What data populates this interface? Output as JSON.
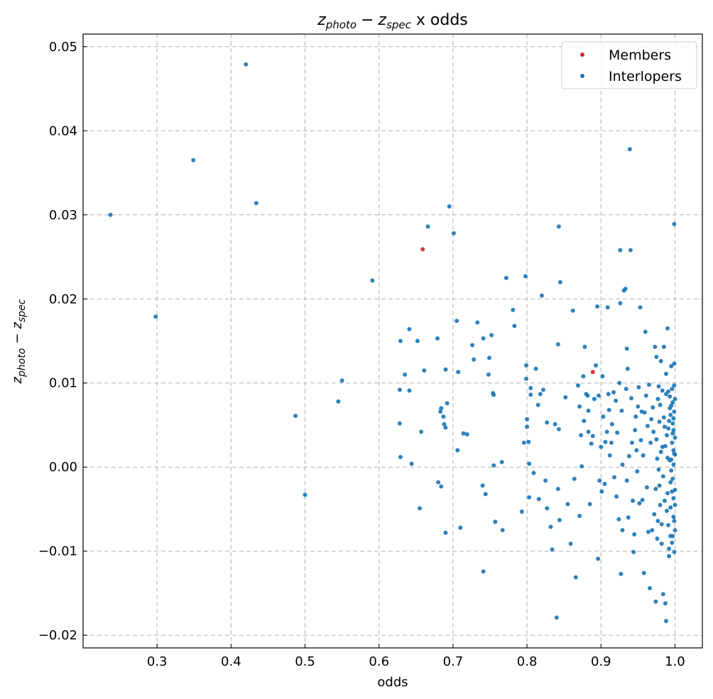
{
  "chart_data": {
    "type": "scatter",
    "title": {
      "a": "z",
      "a_sub": "photo",
      "minus": "−",
      "b": "z",
      "b_sub": "spec",
      "suffix": "x odds"
    },
    "xlabel": "odds",
    "ylabel": {
      "a": "z",
      "a_sub": "photo",
      "minus": "−",
      "b": "z",
      "b_sub": "spec"
    },
    "xlim": [
      0.2,
      1.037
    ],
    "ylim": [
      -0.0215,
      0.0515
    ],
    "xticks": [
      0.3,
      0.4,
      0.5,
      0.6,
      0.7,
      0.8,
      0.9,
      1.0
    ],
    "xtick_labels": [
      "0.3",
      "0.4",
      "0.5",
      "0.6",
      "0.7",
      "0.8",
      "0.9",
      "1.0"
    ],
    "yticks": [
      -0.02,
      -0.01,
      0.0,
      0.01,
      0.02,
      0.03,
      0.04,
      0.05
    ],
    "ytick_labels": [
      "−0.02",
      "−0.01",
      "0.00",
      "0.01",
      "0.02",
      "0.03",
      "0.04",
      "0.05"
    ],
    "grid": true,
    "legend": {
      "placement": "top-right"
    },
    "series": [
      {
        "name": "Members",
        "color": "#d62728",
        "points": [
          [
            0.659,
            0.0259
          ],
          [
            0.889,
            0.0113
          ]
        ]
      },
      {
        "name": "Interlopers",
        "color": "#1f77b4",
        "points": [
          [
            0.237,
            0.03
          ],
          [
            0.298,
            0.0179
          ],
          [
            0.349,
            0.0365
          ],
          [
            0.42,
            0.0479
          ],
          [
            0.434,
            0.0314
          ],
          [
            0.487,
            0.0061
          ],
          [
            0.5,
            -0.0033
          ],
          [
            0.545,
            0.0078
          ],
          [
            0.55,
            0.0103
          ],
          [
            0.591,
            0.0222
          ],
          [
            0.629,
            0.015
          ],
          [
            0.628,
            0.0092
          ],
          [
            0.628,
            0.0052
          ],
          [
            0.629,
            0.0012
          ],
          [
            0.635,
            0.011
          ],
          [
            0.641,
            0.0164
          ],
          [
            0.641,
            0.0091
          ],
          [
            0.644,
            0.0004
          ],
          [
            0.652,
            0.015
          ],
          [
            0.655,
            -0.0049
          ],
          [
            0.657,
            0.0042
          ],
          [
            0.661,
            0.0115
          ],
          [
            0.666,
            0.0286
          ],
          [
            0.679,
            0.0153
          ],
          [
            0.68,
            -0.0018
          ],
          [
            0.683,
            0.0066
          ],
          [
            0.684,
            0.007
          ],
          [
            0.684,
            -0.0023
          ],
          [
            0.687,
            0.006
          ],
          [
            0.688,
            0.0051
          ],
          [
            0.69,
            0.0047
          ],
          [
            0.69,
            0.0116
          ],
          [
            0.69,
            -0.0078
          ],
          [
            0.692,
            0.0076
          ],
          [
            0.695,
            0.031
          ],
          [
            0.701,
            0.0278
          ],
          [
            0.705,
            0.0174
          ],
          [
            0.707,
            0.0113
          ],
          [
            0.706,
            0.002
          ],
          [
            0.71,
            -0.0072
          ],
          [
            0.714,
            0.004
          ],
          [
            0.719,
            0.0039
          ],
          [
            0.726,
            0.0145
          ],
          [
            0.728,
            0.0128
          ],
          [
            0.733,
            0.0172
          ],
          [
            0.74,
            -0.0022
          ],
          [
            0.741,
            0.0153
          ],
          [
            0.741,
            -0.0124
          ],
          [
            0.744,
            -0.0032
          ],
          [
            0.748,
            0.011
          ],
          [
            0.749,
            0.013
          ],
          [
            0.752,
            0.0157
          ],
          [
            0.754,
            0.0088
          ],
          [
            0.755,
            0.0086
          ],
          [
            0.755,
            0.0002
          ],
          [
            0.757,
            -0.0065
          ],
          [
            0.766,
            0.0006
          ],
          [
            0.767,
            -0.0075
          ],
          [
            0.772,
            0.0225
          ],
          [
            0.781,
            0.0187
          ],
          [
            0.783,
            0.0168
          ],
          [
            0.793,
            -0.0053
          ],
          [
            0.796,
            0.0029
          ],
          [
            0.798,
            0.0227
          ],
          [
            0.799,
            0.0121
          ],
          [
            0.799,
            0.0105
          ],
          [
            0.8,
            0.0057
          ],
          [
            0.8,
            0.0048
          ],
          [
            0.802,
            0.003
          ],
          [
            0.803,
            0.0004
          ],
          [
            0.803,
            -0.0036
          ],
          [
            0.805,
            0.0094
          ],
          [
            0.805,
            0.0086
          ],
          [
            0.809,
            -0.0007
          ],
          [
            0.812,
            0.0117
          ],
          [
            0.815,
            0.0074
          ],
          [
            0.818,
            0.0087
          ],
          [
            0.82,
            0.0204
          ],
          [
            0.822,
            0.0092
          ],
          [
            0.816,
            -0.0038
          ],
          [
            0.825,
            -0.0016
          ],
          [
            0.827,
            0.0053
          ],
          [
            0.827,
            -0.0049
          ],
          [
            0.832,
            -0.0071
          ],
          [
            0.834,
            -0.0098
          ],
          [
            0.838,
            0.0051
          ],
          [
            0.84,
            -0.0179
          ],
          [
            0.842,
            0.0146
          ],
          [
            0.843,
            0.0286
          ],
          [
            0.845,
            0.022
          ],
          [
            0.843,
            0.0045
          ],
          [
            0.842,
            -0.0026
          ],
          [
            0.844,
            -0.0063
          ],
          [
            0.852,
            0.0083
          ],
          [
            0.855,
            -0.0044
          ],
          [
            0.859,
            -0.0091
          ],
          [
            0.862,
            0.0186
          ],
          [
            0.864,
            -0.0014
          ],
          [
            0.866,
            -0.0131
          ],
          [
            0.869,
            0.0097
          ],
          [
            0.871,
            0.0072
          ],
          [
            0.871,
            -0.0058
          ],
          [
            0.873,
            0.0038
          ],
          [
            0.874,
            0.0001
          ],
          [
            0.876,
            0.0108
          ],
          [
            0.877,
            0.0055
          ],
          [
            0.878,
            0.0143
          ],
          [
            0.88,
            0.0087
          ],
          [
            0.882,
            0.0085
          ],
          [
            0.883,
            0.0042
          ],
          [
            0.883,
            0.0067
          ],
          [
            0.885,
            -0.0044
          ],
          [
            0.887,
            0.0028
          ],
          [
            0.889,
            0.0037
          ],
          [
            0.891,
            0.0081
          ],
          [
            0.893,
            0.0121
          ],
          [
            0.895,
            0.0191
          ],
          [
            0.896,
            -0.0109
          ],
          [
            0.897,
            0.0085
          ],
          [
            0.898,
            -0.0016
          ],
          [
            0.9,
            0.0024
          ],
          [
            0.901,
            -0.0029
          ],
          [
            0.902,
            0.0108
          ],
          [
            0.903,
            0.006
          ],
          [
            0.905,
            -0.002
          ],
          [
            0.906,
            0.003
          ],
          [
            0.908,
            0.0042
          ],
          [
            0.909,
            0.019
          ],
          [
            0.91,
            0.0087
          ],
          [
            0.911,
            0.0068
          ],
          [
            0.912,
            0.0014
          ],
          [
            0.914,
            0.0029
          ],
          [
            0.915,
            0.0051
          ],
          [
            0.917,
            0.0089
          ],
          [
            0.918,
            -0.0012
          ],
          [
            0.92,
            0.0079
          ],
          [
            0.921,
            -0.0035
          ],
          [
            0.922,
            0.0041
          ],
          [
            0.924,
            -0.0062
          ],
          [
            0.925,
            0.01
          ],
          [
            0.926,
            0.0258
          ],
          [
            0.926,
            0.0195
          ],
          [
            0.927,
            -0.0127
          ],
          [
            0.928,
            0.0067
          ],
          [
            0.929,
            0.0003
          ],
          [
            0.929,
            -0.0075
          ],
          [
            0.931,
            0.021
          ],
          [
            0.933,
            0.0212
          ],
          [
            0.934,
            0.0093
          ],
          [
            0.935,
            0.0141
          ],
          [
            0.935,
            -0.0016
          ],
          [
            0.936,
            0.0117
          ],
          [
            0.937,
            -0.006
          ],
          [
            0.938,
            0.0013
          ],
          [
            0.939,
            0.0378
          ],
          [
            0.94,
            0.0258
          ],
          [
            0.941,
            0.0082
          ],
          [
            0.942,
            0.0029
          ],
          [
            0.943,
            -0.004
          ],
          [
            0.944,
            -0.0101
          ],
          [
            0.945,
            -0.008
          ],
          [
            0.946,
            0.0044
          ],
          [
            0.947,
            0.006
          ],
          [
            0.948,
            0.002
          ],
          [
            0.949,
            -0.0005
          ],
          [
            0.95,
            0.0072
          ],
          [
            0.951,
            0.0095
          ],
          [
            0.952,
            -0.0043
          ],
          [
            0.953,
            0.019
          ],
          [
            0.954,
            0.0032
          ],
          [
            0.955,
            0.0066
          ],
          [
            0.956,
            -0.0039
          ],
          [
            0.957,
            0.0014
          ],
          [
            0.958,
            -0.0126
          ],
          [
            0.959,
            0.0065
          ],
          [
            0.96,
            0.0161
          ],
          [
            0.961,
            0.0085
          ],
          [
            0.962,
            -0.0024
          ],
          [
            0.963,
            0.0049
          ],
          [
            0.964,
            -0.0077
          ],
          [
            0.965,
            0.0098
          ],
          [
            0.966,
            -0.0144
          ],
          [
            0.967,
            0.0029
          ],
          [
            0.968,
            0.0057
          ],
          [
            0.969,
            -0.0075
          ],
          [
            0.97,
            0.0071
          ],
          [
            0.971,
            0.0042
          ],
          [
            0.972,
            -0.0056
          ],
          [
            0.973,
            0.0143
          ],
          [
            0.974,
            -0.016
          ],
          [
            0.975,
            0.0131
          ],
          [
            0.976,
            0.001
          ],
          [
            0.977,
            -0.0064
          ],
          [
            0.978,
            0.0096
          ],
          [
            0.979,
            -0.0022
          ],
          [
            0.98,
            0.0074
          ],
          [
            0.981,
            0.0126
          ],
          [
            0.982,
            -0.0091
          ],
          [
            0.983,
            0.0024
          ],
          [
            0.984,
            -0.0151
          ],
          [
            0.985,
            0.0143
          ],
          [
            0.986,
            0.0048
          ],
          [
            0.987,
            -0.0162
          ],
          [
            0.988,
            0.0111
          ],
          [
            0.988,
            -0.0183
          ],
          [
            0.989,
            0.0038
          ],
          [
            0.99,
            0.0165
          ],
          [
            0.99,
            -0.0031
          ],
          [
            0.991,
            0.009
          ],
          [
            0.991,
            -0.0069
          ],
          [
            0.992,
            0.0055
          ],
          [
            0.992,
            -0.0106
          ],
          [
            0.993,
            0.0084
          ],
          [
            0.993,
            0.0008
          ],
          [
            0.994,
            -0.0048
          ],
          [
            0.994,
            0.0062
          ],
          [
            0.995,
            -0.0004
          ],
          [
            0.995,
            0.012
          ],
          [
            0.996,
            0.0029
          ],
          [
            0.996,
            -0.009
          ],
          [
            0.997,
            0.0077
          ],
          [
            0.997,
            -0.0014
          ],
          [
            0.998,
            0.0044
          ],
          [
            0.998,
            -0.0059
          ],
          [
            0.998,
            0.002
          ],
          [
            0.999,
            0.0289
          ],
          [
            0.999,
            0.0123
          ],
          [
            0.999,
            -0.0101
          ],
          [
            0.999,
            0.0066
          ],
          [
            1.0,
            -0.0027
          ],
          [
            1.0,
            0.0081
          ],
          [
            1.0,
            0.0035
          ],
          [
            1.0,
            -0.0075
          ],
          [
            0.999,
            0.0016
          ],
          [
            0.998,
            -0.0037
          ],
          [
            0.997,
            0.0052
          ],
          [
            0.997,
            -0.0082
          ],
          [
            0.996,
            0.0093
          ],
          [
            0.995,
            0.0009
          ],
          [
            0.994,
            -0.0018
          ],
          [
            0.993,
            0.007
          ],
          [
            0.992,
            -0.0097
          ],
          [
            0.991,
            0.0046
          ],
          [
            0.99,
            0.0011
          ],
          [
            0.989,
            -0.0052
          ],
          [
            0.988,
            0.0087
          ],
          [
            0.987,
            0.0025
          ],
          [
            0.986,
            -0.004
          ],
          [
            0.985,
            0.0059
          ],
          [
            0.984,
            -0.0011
          ],
          [
            0.983,
            0.0091
          ],
          [
            0.982,
            -0.0068
          ],
          [
            0.981,
            0.0018
          ],
          [
            0.98,
            -0.0045
          ],
          [
            0.979,
            0.0054
          ],
          [
            0.978,
            -0.0003
          ],
          [
            0.977,
            0.0081
          ],
          [
            0.976,
            -0.0085
          ],
          [
            0.975,
            0.0033
          ],
          [
            0.974,
            -0.0026
          ],
          [
            0.998,
            0.0003
          ],
          [
            0.998,
            0.0058
          ],
          [
            0.999,
            -0.0064
          ],
          [
            0.997,
            0.004
          ],
          [
            0.996,
            -0.0029
          ],
          [
            1.0,
            0.0015
          ],
          [
            1.0,
            -0.0045
          ],
          [
            0.999,
            0.0097
          ],
          [
            0.995,
            0.0073
          ],
          [
            0.994,
            -0.0082
          ]
        ]
      }
    ]
  }
}
